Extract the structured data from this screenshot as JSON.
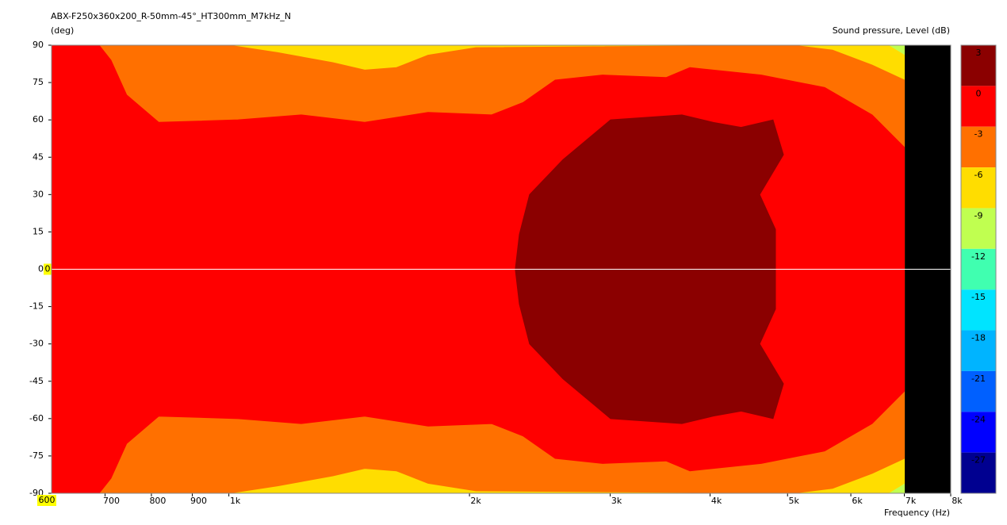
{
  "chart_data": {
    "type": "contour",
    "title": "ABX-F250x360x200_R-50mm-45°_HT300mm_M7kHz_N",
    "y_label": "(deg)",
    "x_label": "Frequency  (Hz)",
    "colorbar_label": "Sound pressure, Level  (dB)",
    "x_log": true,
    "xlim": [
      600,
      8000
    ],
    "xticks": [
      700,
      800,
      900,
      {
        "value": 1000,
        "label": "1k"
      },
      {
        "value": 2000,
        "label": "2k"
      },
      {
        "value": 3000,
        "label": "3k"
      },
      {
        "value": 4000,
        "label": "4k"
      },
      {
        "value": 5000,
        "label": "5k"
      },
      {
        "value": 6000,
        "label": "6k"
      },
      {
        "value": 7000,
        "label": "7k"
      },
      {
        "value": 8000,
        "label": "8k"
      }
    ],
    "ylim": [
      -90,
      90
    ],
    "yticks": [
      90,
      75,
      60,
      45,
      30,
      15,
      0,
      -15,
      -30,
      -45,
      -60,
      -75,
      -90
    ],
    "cursor": {
      "x": 600,
      "y": 0
    },
    "colorbar": {
      "ticks": [
        3,
        0,
        -3,
        -6,
        -9,
        -12,
        -15,
        -18,
        -21,
        -24,
        -27
      ],
      "colors": [
        "#8b0000",
        "#ff0000",
        "#ff7000",
        "#ffdd00",
        "#c0ff50",
        "#40ffb0",
        "#00e4ff",
        "#00b4ff",
        "#0060ff",
        "#0000ff",
        "#000090"
      ]
    },
    "regions": [
      {
        "level": -12,
        "top": [
          [
            600,
            90
          ],
          [
            7000,
            90
          ]
        ],
        "bottom": [
          [
            600,
            -90
          ],
          [
            7000,
            -90
          ]
        ]
      },
      {
        "level": -9,
        "top": [
          [
            600,
            90
          ],
          [
            6677,
            90
          ],
          [
            7000,
            86
          ]
        ],
        "bottom": [
          [
            600,
            -90
          ],
          [
            6677,
            -90
          ],
          [
            7000,
            -86
          ]
        ]
      },
      {
        "level": -6,
        "top": [
          [
            600,
            90
          ],
          [
            1000,
            90
          ],
          [
            1151,
            87
          ],
          [
            1349,
            83
          ],
          [
            1479,
            80
          ],
          [
            1621,
            81
          ],
          [
            1775,
            86
          ],
          [
            2037,
            89
          ],
          [
            5078,
            90
          ],
          [
            5692,
            88
          ],
          [
            6379,
            82
          ],
          [
            7000,
            76
          ]
        ],
        "bottom": [
          [
            600,
            -90
          ],
          [
            1000,
            -90
          ],
          [
            1151,
            -87
          ],
          [
            1349,
            -83
          ],
          [
            1479,
            -80
          ],
          [
            1621,
            -81
          ],
          [
            1775,
            -86
          ],
          [
            2037,
            -89
          ],
          [
            5078,
            -90
          ],
          [
            5692,
            -88
          ],
          [
            6379,
            -82
          ],
          [
            7000,
            -76
          ]
        ]
      },
      {
        "level": -3,
        "top": [
          [
            600,
            90
          ],
          [
            688,
            90
          ],
          [
            712,
            84
          ],
          [
            745,
            70
          ],
          [
            817,
            59
          ],
          [
            1027,
            60
          ],
          [
            1232,
            62
          ],
          [
            1479,
            59
          ],
          [
            1775,
            63
          ],
          [
            2132,
            62
          ],
          [
            2335,
            67
          ],
          [
            2560,
            76
          ],
          [
            2935,
            78
          ],
          [
            3524,
            77
          ],
          [
            3774,
            81
          ],
          [
            4634,
            78
          ],
          [
            5564,
            73
          ],
          [
            6379,
            62
          ],
          [
            7000,
            49
          ]
        ],
        "bottom": [
          [
            600,
            -90
          ],
          [
            688,
            -90
          ],
          [
            712,
            -84
          ],
          [
            745,
            -70
          ],
          [
            817,
            -59
          ],
          [
            1027,
            -60
          ],
          [
            1232,
            -62
          ],
          [
            1479,
            -59
          ],
          [
            1775,
            -63
          ],
          [
            2132,
            -62
          ],
          [
            2335,
            -67
          ],
          [
            2560,
            -76
          ],
          [
            2935,
            -78
          ],
          [
            3524,
            -77
          ],
          [
            3774,
            -81
          ],
          [
            4634,
            -78
          ],
          [
            5564,
            -73
          ],
          [
            6379,
            -62
          ],
          [
            7000,
            -49
          ]
        ]
      },
      {
        "level": 0,
        "top": [
          [
            2282,
            0
          ],
          [
            2309,
            14
          ],
          [
            2378,
            30
          ],
          [
            2618,
            44
          ],
          [
            3003,
            60
          ],
          [
            3688,
            62
          ],
          [
            4038,
            59
          ],
          [
            4374,
            57
          ],
          [
            4795,
            60
          ],
          [
            4941,
            46
          ],
          [
            4614,
            30
          ],
          [
            4829,
            16
          ],
          [
            4829,
            0
          ]
        ],
        "bottom": [
          [
            2282,
            0
          ],
          [
            2309,
            -14
          ],
          [
            2378,
            -30
          ],
          [
            2618,
            -44
          ],
          [
            3003,
            -60
          ],
          [
            3688,
            -62
          ],
          [
            4038,
            -59
          ],
          [
            4374,
            -57
          ],
          [
            4795,
            -60
          ],
          [
            4941,
            -46
          ],
          [
            4614,
            -30
          ],
          [
            4829,
            -16
          ],
          [
            4829,
            0
          ]
        ]
      }
    ]
  }
}
